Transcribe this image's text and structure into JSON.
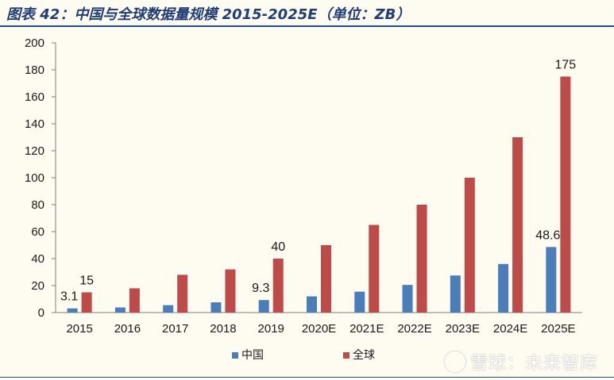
{
  "title": "图表 42：中国与全球数据量规模 2015-2025E（单位：ZB）",
  "watermark": "雪球：未来智库",
  "chart_data": {
    "type": "bar",
    "categories": [
      "2015",
      "2016",
      "2017",
      "2018",
      "2019",
      "2020E",
      "2021E",
      "2022E",
      "2023E",
      "2024E",
      "2025E"
    ],
    "series": [
      {
        "name": "中国",
        "color": "#4a7ebb",
        "values": [
          3.1,
          3.8,
          5.5,
          7.6,
          9.3,
          12,
          15.5,
          20.5,
          27.5,
          36,
          48.6
        ]
      },
      {
        "name": "全球",
        "color": "#be4b48",
        "values": [
          15,
          18,
          28,
          32,
          40,
          50,
          65,
          80,
          100,
          130,
          175
        ]
      }
    ],
    "data_labels": [
      {
        "series": 0,
        "index": 0,
        "text": "3.1"
      },
      {
        "series": 1,
        "index": 0,
        "text": "15"
      },
      {
        "series": 0,
        "index": 4,
        "text": "9.3"
      },
      {
        "series": 1,
        "index": 4,
        "text": "40"
      },
      {
        "series": 0,
        "index": 10,
        "text": "48.6"
      },
      {
        "series": 1,
        "index": 10,
        "text": "175"
      }
    ],
    "yticks": [
      0,
      20,
      40,
      60,
      80,
      100,
      120,
      140,
      160,
      180,
      200
    ],
    "ylim": [
      0,
      200
    ],
    "legend_position": "bottom-center",
    "grid": false
  }
}
